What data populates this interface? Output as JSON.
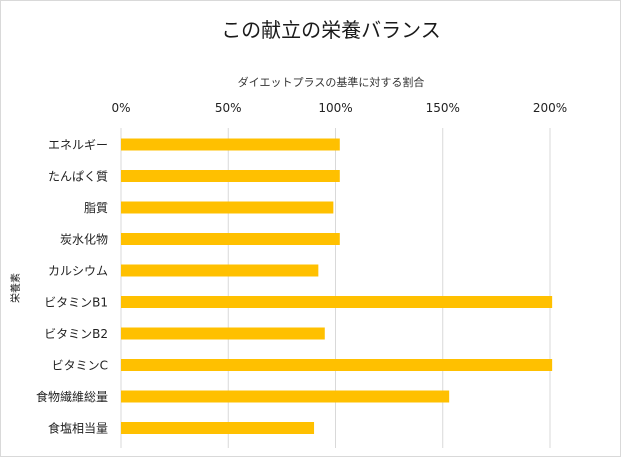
{
  "chart_data": {
    "type": "bar",
    "orientation": "horizontal",
    "title": "この献立の栄養バランス",
    "xlabel": "ダイエットプラスの基準に対する割合",
    "ylabel": "栄養素",
    "xlim": [
      0,
      200
    ],
    "xticks": [
      "0%",
      "50%",
      "100%",
      "150%",
      "200%"
    ],
    "xaxis_position": "top",
    "grid": "vertical",
    "bar_color": "#FFC000",
    "categories": [
      "エネルギー",
      "たんぱく質",
      "脂質",
      "炭水化物",
      "カルシウム",
      "ビタミンB1",
      "ビタミンB2",
      "ビタミンC",
      "食物繊維総量",
      "食塩相当量"
    ],
    "values": [
      102,
      102,
      99,
      102,
      92,
      201,
      95,
      201,
      153,
      90
    ]
  }
}
